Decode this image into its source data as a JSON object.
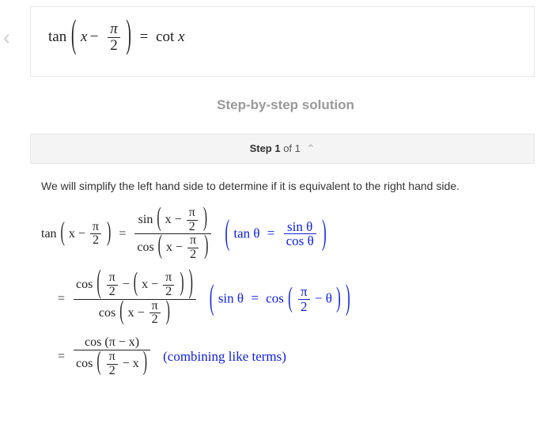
{
  "colors": {
    "text": "#222222",
    "muted": "#999999",
    "rationale": "#1020dd",
    "border": "#e8e8e8",
    "step_bg": "#f4f4f4",
    "chevron": "#cccccc"
  },
  "nav": {
    "back_glyph": "‹"
  },
  "problem": {
    "lhs_fn": "tan",
    "lhs_inner_var": "x",
    "lhs_inner_op": "−",
    "lhs_inner_frac_num": "π",
    "lhs_inner_frac_den": "2",
    "eq": "=",
    "rhs_fn": "cot",
    "rhs_var": "x"
  },
  "section_title": "Step-by-step solution",
  "step_header": {
    "label_prefix": "Step ",
    "current": "1",
    "of_word": " of ",
    "total": "1",
    "chevron": "⌃"
  },
  "intro": "We will simplify the left hand side to determine if it is equivalent to the right hand side.",
  "line1": {
    "lhs": {
      "fn": "tan",
      "var": "x",
      "op": "−",
      "frac_num": "π",
      "frac_den": "2"
    },
    "rhs_num": {
      "fn": "sin",
      "var": "x",
      "op": "−",
      "frac_num": "π",
      "frac_den": "2"
    },
    "rhs_den": {
      "fn": "cos",
      "var": "x",
      "op": "−",
      "frac_num": "π",
      "frac_den": "2"
    },
    "rationale": {
      "fn": "tan",
      "var": "θ",
      "eq": "=",
      "num_fn": "sin",
      "num_var": "θ",
      "den_fn": "cos",
      "den_var": "θ"
    }
  },
  "line2": {
    "num": {
      "fn": "cos",
      "outer_frac_num": "π",
      "outer_frac_den": "2",
      "op1": "−",
      "inner_var": "x",
      "op2": "−",
      "inner_frac_num": "π",
      "inner_frac_den": "2"
    },
    "den": {
      "fn": "cos",
      "var": "x",
      "op": "−",
      "frac_num": "π",
      "frac_den": "2"
    },
    "rationale": {
      "lhs_fn": "sin",
      "lhs_var": "θ",
      "eq": "=",
      "rhs_fn": "cos",
      "frac_num": "π",
      "frac_den": "2",
      "op": "−",
      "var": "θ"
    }
  },
  "line3": {
    "num": {
      "fn": "cos",
      "inner": "π − x"
    },
    "den": {
      "fn": "cos",
      "frac_num": "π",
      "frac_den": "2",
      "op": "−",
      "var": "x"
    },
    "rationale_text": "(combining like terms)"
  }
}
